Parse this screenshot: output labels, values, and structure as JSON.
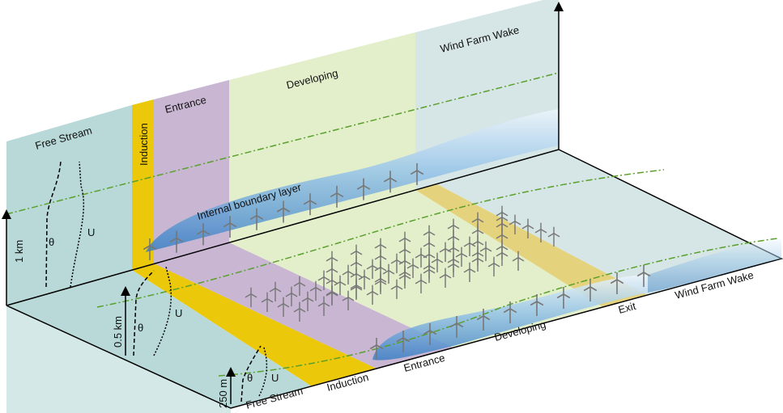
{
  "back_wall": {
    "regions": [
      "Free Stream",
      "Induction",
      "Entrance",
      "Developing",
      "Wind Farm Wake"
    ],
    "boundary_layer_label": "Internal boundary layer",
    "theta_label": "θ",
    "u_label": "U",
    "height_label": "1 km"
  },
  "side_wall": {
    "theta_label": "θ",
    "u_label": "U",
    "height_label": "0.5 km"
  },
  "floor": {
    "regions": [
      "Free Stream",
      "Induction",
      "Entrance",
      "Developing",
      "Exit",
      "Wind Farm Wake"
    ],
    "theta_label": "θ",
    "u_label": "U",
    "height_label": "250 m"
  }
}
